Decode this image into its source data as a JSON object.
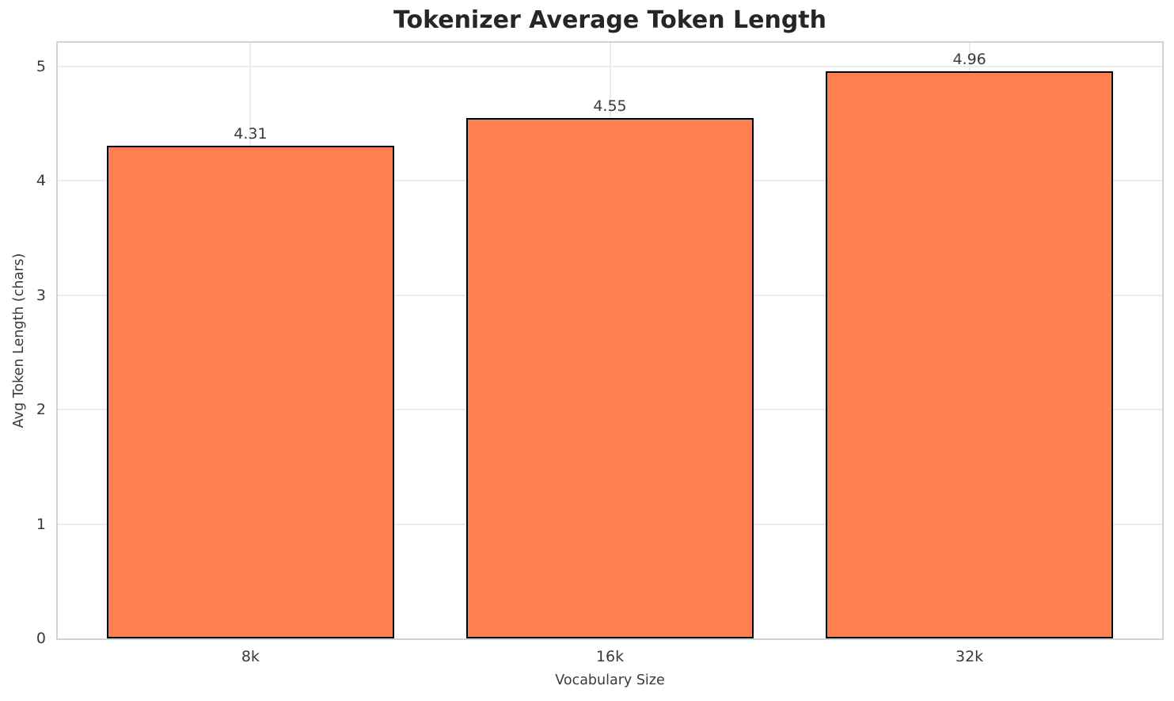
{
  "chart_data": {
    "type": "bar",
    "title": "Tokenizer Average Token Length",
    "categories": [
      "8k",
      "16k",
      "32k"
    ],
    "values": [
      4.31,
      4.55,
      4.96
    ],
    "value_labels": [
      "4.31",
      "4.55",
      "4.96"
    ],
    "xlabel": "Vocabulary Size",
    "ylabel": "Avg Token Length (chars)",
    "yticks": [
      0,
      1,
      2,
      3,
      4,
      5
    ],
    "ytick_labels": [
      "0",
      "1",
      "2",
      "3",
      "4",
      "5"
    ],
    "ylim": [
      0,
      5.207
    ],
    "grid": true,
    "legend": null,
    "bar_color": "#FF7F50",
    "bar_edge_color": "#000000",
    "grid_color": "#ececec",
    "spine_color": "#d2d2d2",
    "title_color": "#262626",
    "text_color": "#3a3a3a",
    "background_color": "#ffffff"
  }
}
